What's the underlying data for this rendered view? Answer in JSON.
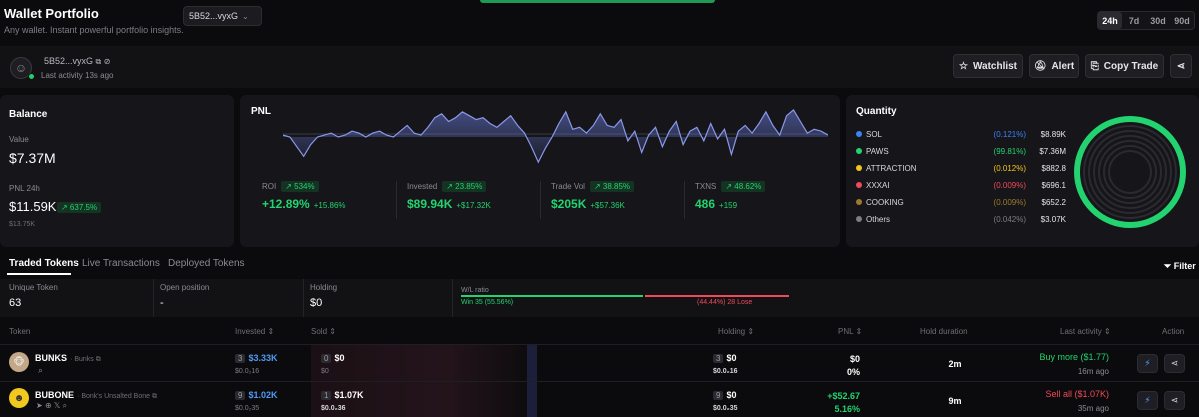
{
  "header": {
    "title": "Wallet Portfolio",
    "subtitle": "Any wallet. Instant powerful portfolio insights.",
    "wallet_select": "5B52...vyxG",
    "periods": [
      "24h",
      "7d",
      "30d",
      "90d"
    ],
    "active_period": "24h"
  },
  "wallet": {
    "address": "5B52...vyxG",
    "last_activity": "Last activity 13s ago",
    "buttons": {
      "watchlist": "Watchlist",
      "alert": "Alert",
      "copy_trade": "Copy Trade"
    }
  },
  "balance": {
    "title": "Balance",
    "value_label": "Value",
    "value": "$7.37M",
    "pnl_label": "PNL 24h",
    "pnl_value": "$11.59K",
    "pnl_badge": "↗ 637.5%",
    "pnl_sub": "$13.75K"
  },
  "pnl": {
    "title": "PNL",
    "stats": [
      {
        "label": "ROI",
        "badge": "↗ 534%",
        "value": "+12.89%",
        "delta": "+15.86%"
      },
      {
        "label": "Invested",
        "badge": "↗ 23.85%",
        "value": "$89.94K",
        "delta": "+$17.32K"
      },
      {
        "label": "Trade Vol",
        "badge": "↗ 38.85%",
        "value": "$205K",
        "delta": "+$57.36K"
      },
      {
        "label": "TXNS",
        "badge": "↗ 48.62%",
        "value": "486",
        "delta": "+159"
      }
    ]
  },
  "chart_data": {
    "type": "area",
    "title": "PNL",
    "xlabel": "",
    "ylabel": "",
    "x": [
      0,
      1,
      2,
      3,
      4,
      5,
      6,
      7,
      8,
      9,
      10,
      11,
      12,
      13,
      14,
      15,
      16,
      17,
      18,
      19,
      20,
      21,
      22,
      23,
      24,
      25,
      26,
      27,
      28,
      29,
      30,
      31,
      32,
      33,
      34,
      35,
      36,
      37,
      38,
      39,
      40,
      41,
      42,
      43,
      44,
      45,
      46,
      47,
      48,
      49,
      50,
      51,
      52,
      53,
      54,
      55,
      56,
      57,
      58,
      59,
      60,
      61,
      62,
      63,
      64,
      65,
      66,
      67,
      68,
      69,
      70,
      71,
      72,
      73,
      74,
      75,
      76,
      77,
      78,
      79
    ],
    "values": [
      0.1,
      0,
      -0.5,
      -1,
      -0.4,
      0,
      0.1,
      0.2,
      0,
      0.1,
      0.3,
      0.2,
      0,
      0.2,
      0.3,
      0.1,
      0,
      0.3,
      0.6,
      0.2,
      0.1,
      0.5,
      1,
      1.2,
      0.8,
      1,
      1.3,
      1.1,
      0.9,
      1,
      0.7,
      0.5,
      0.8,
      1.1,
      0.6,
      0.2,
      -0.5,
      -1.3,
      -0.6,
      0,
      0.7,
      1.3,
      0.4,
      0.5,
      0.2,
      0.6,
      1.2,
      0.6,
      0.5,
      0.9,
      -0.2,
      0.3,
      -0.8,
      0.1,
      0.5,
      -0.5,
      0.3,
      0.8,
      -0.4,
      0.3,
      0.5,
      -0.2,
      0.7,
      -0.1,
      0.4,
      -0.9,
      0.3,
      0.6,
      0.2,
      0.7,
      1.3,
      0.6,
      0.1,
      1.1,
      1.4,
      0.8,
      0.2,
      0.4,
      0.3,
      0.1
    ],
    "ylim": [
      -1.5,
      1.5
    ]
  },
  "quantity": {
    "title": "Quantity",
    "items": [
      {
        "name": "SOL",
        "pct": "(0.121%)",
        "value": "$8.89K",
        "color": "#3b82f6"
      },
      {
        "name": "PAWS",
        "pct": "(99.81%)",
        "value": "$7.36M",
        "color": "#22d36f"
      },
      {
        "name": "ATTRACTION",
        "pct": "(0.012%)",
        "value": "$882.8",
        "color": "#f5c518"
      },
      {
        "name": "XXXAI",
        "pct": "(0.009%)",
        "value": "$696.1",
        "color": "#ef4a5a"
      },
      {
        "name": "COOKING",
        "pct": "(0.009%)",
        "value": "$652.2",
        "color": "#a07a2a"
      },
      {
        "name": "Others",
        "pct": "(0.042%)",
        "value": "$3.07K",
        "color": "#7d7d85"
      }
    ]
  },
  "tabs": [
    "Traded Tokens",
    "Live Transactions",
    "Deployed Tokens"
  ],
  "filter_label": "Filter",
  "summary": {
    "unique_label": "Unique Token",
    "unique_value": "63",
    "open_label": "Open position",
    "open_value": "-",
    "holding_label": "Holding",
    "holding_value": "$0",
    "wl_label": "W/L ratio",
    "win_text": "Win 35 (55.56%)",
    "lose_text": "(44.44%) 28 Lose"
  },
  "table": {
    "headers": {
      "token": "Token",
      "invested": "Invested ⇕",
      "sold": "Sold ⇕",
      "holding": "Holding ⇕",
      "pnl": "PNL ⇕",
      "hold": "Hold duration",
      "last": "Last activity ⇕",
      "action": "Action"
    },
    "rows": [
      {
        "name": "BUNKS",
        "sub": "· Bunks ⧉",
        "inv_cnt": "3",
        "inv": "$3.33K",
        "inv_sub": "$0.0₂16",
        "sold_cnt": "0",
        "sold": "$0",
        "sold_sub": "$0",
        "hold_cnt": "3",
        "hold": "$0",
        "hold_sub": "$0.0₂16",
        "pnl": "$0",
        "pnl_pct": "0%",
        "duration": "2m",
        "last": "Buy more ($1.77)",
        "last_time": "16m ago",
        "last_color": "green"
      },
      {
        "name": "BUBONE",
        "sub": "· Bonk's Unsalted Bone ⧉",
        "inv_cnt": "9",
        "inv": "$1.02K",
        "inv_sub": "$0.0₂35",
        "sold_cnt": "1",
        "sold": "$1.07K",
        "sold_sub": "$0.0₂36",
        "hold_cnt": "9",
        "hold": "$0",
        "hold_sub": "$0.0₂35",
        "pnl": "+$52.67",
        "pnl_pct": "5.16%",
        "duration": "9m",
        "last": "Sell all ($1.07K)",
        "last_time": "35m ago",
        "last_color": "red"
      }
    ]
  }
}
